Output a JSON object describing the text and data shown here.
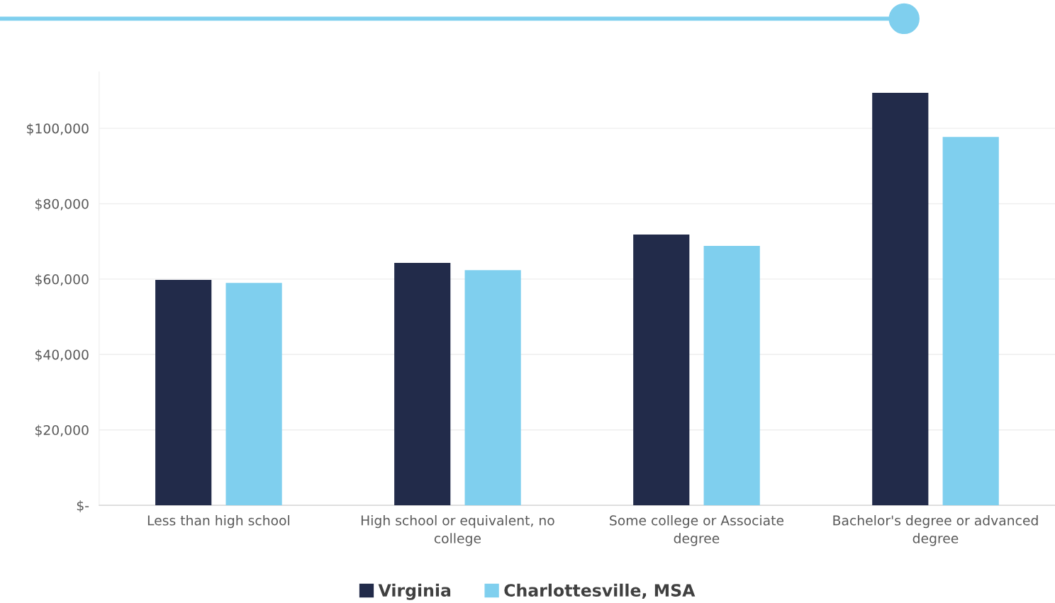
{
  "chart_data": {
    "type": "bar",
    "categories": [
      "Less than high school",
      "High school or equivalent, no college",
      "Some college or Associate degree",
      "Bachelor's degree or advanced degree"
    ],
    "series": [
      {
        "name": "Virginia",
        "color": "#222b4a",
        "values": [
          59800,
          64300,
          71800,
          109400
        ]
      },
      {
        "name": "Charlottesville, MSA",
        "color": "#7fcfee",
        "values": [
          59000,
          62400,
          68800,
          97700
        ]
      }
    ],
    "yticks": [
      {
        "value": 0,
        "label": "$-"
      },
      {
        "value": 20000,
        "label": "$20,000"
      },
      {
        "value": 40000,
        "label": "$40,000"
      },
      {
        "value": 60000,
        "label": "$60,000"
      },
      {
        "value": 80000,
        "label": "$80,000"
      },
      {
        "value": 100000,
        "label": "$100,000"
      }
    ],
    "ylim": [
      0,
      115000
    ],
    "grid": "y",
    "legend": "bottom"
  }
}
